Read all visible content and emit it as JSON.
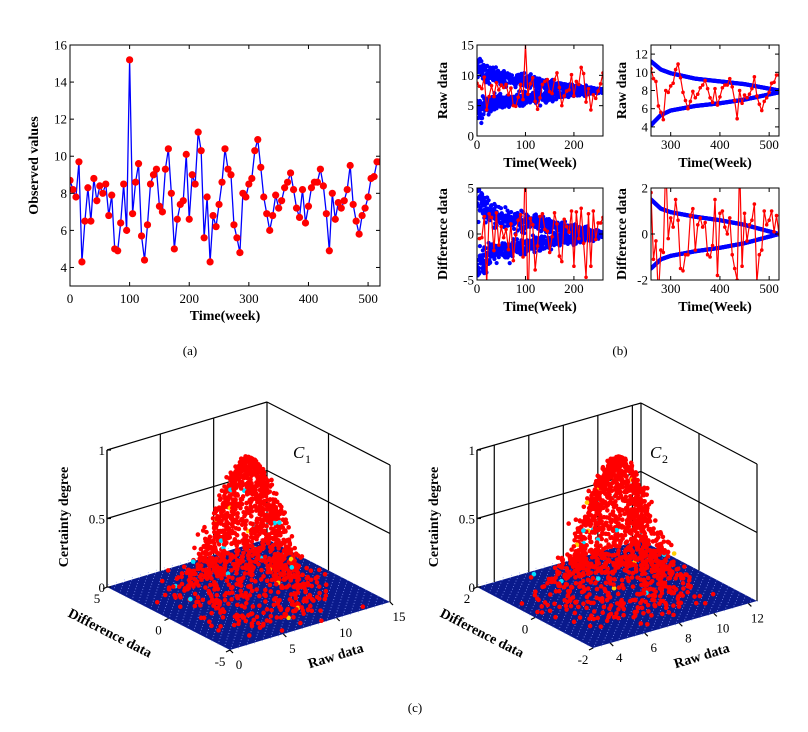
{
  "captions": {
    "a": "(a)",
    "b": "(b)",
    "c": "(c)"
  },
  "chart_data": [
    {
      "id": "a-observed",
      "type": "line",
      "xlabel": "Time(week)",
      "ylabel": "Observed values",
      "xlim": [
        0,
        520
      ],
      "ylim": [
        3,
        16
      ],
      "xticks": [
        0,
        100,
        200,
        300,
        400,
        500
      ],
      "yticks": [
        4,
        6,
        8,
        10,
        12,
        14,
        16
      ],
      "line_color": "#0000ff",
      "marker_color": "#ff0000",
      "x": [
        0,
        5,
        10,
        15,
        20,
        25,
        30,
        35,
        40,
        45,
        50,
        55,
        60,
        65,
        70,
        75,
        80,
        85,
        90,
        95,
        100,
        105,
        110,
        115,
        120,
        125,
        130,
        135,
        140,
        145,
        150,
        155,
        160,
        165,
        170,
        175,
        180,
        185,
        190,
        195,
        200,
        205,
        210,
        215,
        220,
        225,
        230,
        235,
        240,
        245,
        250,
        255,
        260,
        265,
        270,
        275,
        280,
        285,
        290,
        295,
        300,
        305,
        310,
        315,
        320,
        325,
        330,
        335,
        340,
        345,
        350,
        355,
        360,
        365,
        370,
        375,
        380,
        385,
        390,
        395,
        400,
        405,
        410,
        415,
        420,
        425,
        430,
        435,
        440,
        445,
        450,
        455,
        460,
        465,
        470,
        475,
        480,
        485,
        490,
        495,
        500,
        505,
        510,
        515,
        520
      ],
      "y": [
        8.7,
        8.2,
        7.8,
        9.7,
        4.3,
        6.5,
        8.3,
        6.5,
        8.8,
        7.6,
        8.4,
        8.0,
        8.5,
        6.8,
        7.9,
        5.0,
        4.9,
        6.4,
        8.5,
        6.0,
        15.2,
        6.9,
        8.6,
        9.6,
        5.7,
        4.4,
        6.3,
        8.5,
        9.0,
        9.3,
        7.3,
        7.0,
        9.3,
        10.4,
        8.0,
        5.0,
        6.6,
        7.4,
        7.6,
        10.1,
        6.6,
        9.0,
        8.5,
        11.3,
        10.3,
        5.6,
        7.8,
        4.3,
        6.8,
        6.2,
        7.4,
        8.6,
        10.4,
        9.3,
        9.0,
        6.3,
        5.6,
        4.8,
        8.0,
        7.8,
        8.5,
        8.8,
        10.3,
        10.9,
        9.4,
        7.8,
        6.9,
        6.0,
        6.8,
        7.9,
        7.2,
        7.6,
        8.3,
        8.6,
        9.1,
        8.2,
        7.2,
        6.7,
        8.2,
        6.4,
        7.3,
        8.3,
        8.6,
        8.6,
        9.3,
        8.4,
        6.9,
        4.9,
        8.0,
        6.6,
        7.5,
        7.2,
        7.6,
        8.2,
        9.5,
        7.4,
        6.5,
        5.8,
        6.8,
        7.2,
        7.8,
        8.8,
        8.9,
        9.7,
        9.7
      ]
    },
    {
      "id": "b-raw-first-half",
      "type": "scatter",
      "xlabel": "Time(Week)",
      "ylabel": "Raw data",
      "xlim": [
        0,
        260
      ],
      "ylim": [
        0,
        15
      ],
      "xticks": [
        0,
        100,
        200
      ],
      "yticks": [
        0,
        5,
        10,
        15
      ],
      "series_color": "#ff0000",
      "envelope_color": "#0000ff",
      "envelope": {
        "t": [
          0,
          20,
          50,
          100,
          150,
          200,
          260
        ],
        "upper": [
          12,
          10.3,
          9.6,
          9.0,
          8.5,
          8.0,
          7.5
        ],
        "lower": [
          4.3,
          5.0,
          5.6,
          6.2,
          6.6,
          7.0,
          7.5
        ],
        "scattered": true
      }
    },
    {
      "id": "b-raw-second-half",
      "type": "scatter",
      "xlabel": "Time(Week)",
      "ylabel": "Raw data",
      "xlim": [
        260,
        520
      ],
      "ylim": [
        3,
        13
      ],
      "xticks": [
        300,
        400,
        500
      ],
      "yticks": [
        4,
        6,
        8,
        10,
        12
      ],
      "series_color": "#ff0000",
      "envelope_color": "#0000ff",
      "envelope": {
        "t": [
          260,
          280,
          300,
          350,
          400,
          450,
          520
        ],
        "upper": [
          11.2,
          10.3,
          9.9,
          9.3,
          9.0,
          8.7,
          8.0
        ],
        "lower": [
          4.2,
          5.3,
          5.8,
          6.3,
          6.6,
          7.0,
          7.8
        ],
        "scattered": false
      }
    },
    {
      "id": "b-diff-first-half",
      "type": "scatter",
      "xlabel": "Time(Week)",
      "ylabel": "Difference data",
      "xlim": [
        0,
        260
      ],
      "ylim": [
        -5,
        5
      ],
      "xticks": [
        0,
        100,
        200
      ],
      "yticks": [
        -5,
        0,
        5
      ],
      "series_color": "#ff0000",
      "envelope_color": "#0000ff",
      "envelope": {
        "t": [
          0,
          20,
          50,
          100,
          150,
          200,
          260
        ],
        "upper": [
          4,
          2.3,
          1.8,
          1.3,
          0.9,
          0.5,
          0
        ],
        "lower": [
          -4,
          -2.5,
          -1.8,
          -1.3,
          -0.9,
          -0.5,
          0
        ],
        "scattered": true
      }
    },
    {
      "id": "b-diff-second-half",
      "type": "scatter",
      "xlabel": "Time(Week)",
      "ylabel": "Difference data",
      "xlim": [
        260,
        520
      ],
      "ylim": [
        -2,
        2
      ],
      "xticks": [
        300,
        400,
        500
      ],
      "yticks": [
        -2,
        0,
        2
      ],
      "series_color": "#ff0000",
      "envelope_color": "#0000ff",
      "envelope": {
        "t": [
          260,
          280,
          300,
          350,
          400,
          450,
          520
        ],
        "upper": [
          1.5,
          1.1,
          0.95,
          0.75,
          0.6,
          0.4,
          0
        ],
        "lower": [
          -1.5,
          -1.1,
          -0.95,
          -0.75,
          -0.6,
          -0.4,
          0
        ],
        "scattered": false
      }
    },
    {
      "id": "c1-cloud",
      "type": "scatter3d",
      "label": "C",
      "subscript": "1",
      "xlabel": "Raw data",
      "ylabel": "Difference data",
      "zlabel": "Certainty degree",
      "xlim": [
        0,
        15
      ],
      "ylim": [
        -5,
        5
      ],
      "zlim": [
        0,
        1
      ],
      "xticks": [
        0,
        5,
        10,
        15
      ],
      "yticks": [
        -5,
        0,
        5
      ],
      "zticks": [
        0,
        0.5,
        1
      ],
      "peak": {
        "raw": 7.5,
        "diff": 0,
        "raw_spread": 1.9,
        "diff_spread": 1.4
      },
      "surface_color": "#0a1a8c",
      "drop_color": "#ff0000"
    },
    {
      "id": "c2-cloud",
      "type": "scatter3d",
      "label": "C",
      "subscript": "2",
      "xlabel": "Raw data",
      "ylabel": "Difference data",
      "zlabel": "Certainty degree",
      "xlim": [
        3,
        12.5
      ],
      "ylim": [
        -2,
        2
      ],
      "zlim": [
        0,
        1
      ],
      "xticks": [
        4,
        6,
        8,
        10,
        12
      ],
      "yticks": [
        -2,
        0,
        2
      ],
      "zticks": [
        0,
        0.5,
        1
      ],
      "peak": {
        "raw": 7.8,
        "diff": 0,
        "raw_spread": 1.3,
        "diff_spread": 0.55
      },
      "surface_color": "#0a1a8c",
      "drop_color": "#ff0000"
    }
  ]
}
